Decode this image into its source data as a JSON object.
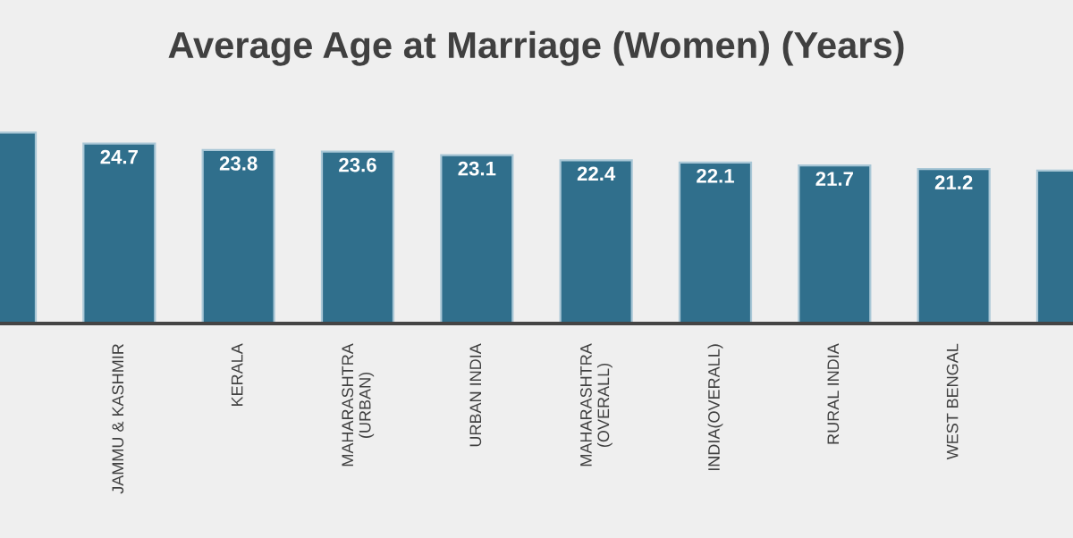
{
  "chart_data": {
    "type": "bar",
    "title": "Average Age at Marriage (Women) (Years)",
    "categories": [
      null,
      "JAMMU & KASHMIR",
      "KERALA",
      "MAHARASHTRA\n(URBAN)",
      "URBAN INDIA",
      "MAHARASHTRA\n(OVERALL)",
      "INDIA(OVERALL)",
      "RURAL INDIA",
      "WEST BENGAL",
      null
    ],
    "values": [
      26.2,
      24.7,
      23.8,
      23.6,
      23.1,
      22.4,
      22.1,
      21.7,
      21.2,
      21.0
    ],
    "value_labels": [
      null,
      "24.7",
      "23.8",
      "23.6",
      "23.1",
      "22.4",
      "22.1",
      "21.7",
      "21.2",
      null
    ],
    "color": "#306f8c",
    "grid": false,
    "legend": false,
    "tick_labels": "x"
  }
}
